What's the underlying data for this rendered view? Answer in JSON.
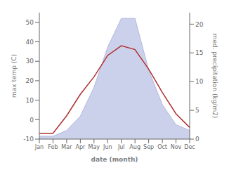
{
  "chart_data": {
    "type": "line",
    "xlabel": "date (month)",
    "ylabel": "max temp (C)",
    "y2label": "med. precipitation (kg/m2)",
    "categories": [
      "Jan",
      "Feb",
      "Mar",
      "Apr",
      "May",
      "Jun",
      "Jul",
      "Aug",
      "Sep",
      "Oct",
      "Nov",
      "Dec"
    ],
    "series": [
      {
        "type": "area",
        "axis": "y2",
        "color": "#b0b8e0",
        "values": [
          0.5,
          0.5,
          1.5,
          4,
          9,
          16,
          21,
          21,
          12,
          6,
          2.5,
          1.5
        ]
      },
      {
        "type": "line",
        "color": "#b03030",
        "values": [
          -7,
          -7,
          2,
          13,
          22,
          33,
          38,
          36,
          26,
          14,
          3,
          -4
        ]
      }
    ],
    "ylim": [
      -10,
      55
    ],
    "yticks": [
      -10,
      0,
      10,
      20,
      30,
      40,
      50
    ],
    "y2lim": [
      0,
      22
    ],
    "y2ticks": [
      0,
      5,
      10,
      15,
      20
    ],
    "grid": false
  }
}
